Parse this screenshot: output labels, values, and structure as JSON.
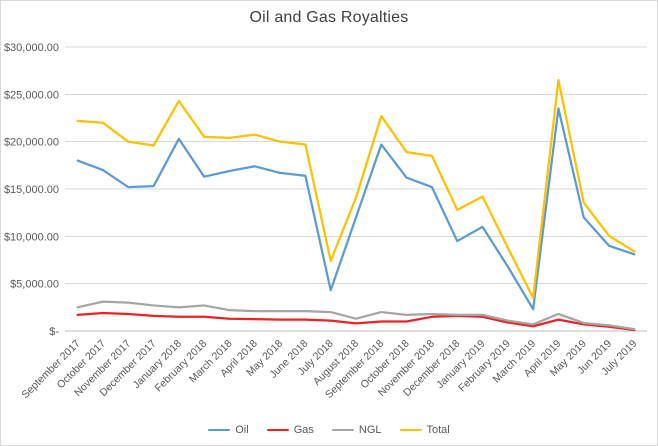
{
  "chart_data": {
    "type": "line",
    "title": "Oil and Gas Royalties",
    "x": [
      "September 2017",
      "October 2017",
      "November 2017",
      "December 2017",
      "January 2018",
      "February 2018",
      "March 2018",
      "April 2018",
      "May 2018",
      "June 2018",
      "July 2018",
      "August 2018",
      "September 2018",
      "October 2018",
      "November 2018",
      "December 2018",
      "January 2019",
      "February 2019",
      "March 2019",
      "April 2019",
      "May 2019",
      "Jun 2019",
      "July 2019"
    ],
    "series": [
      {
        "name": "Oil",
        "color": "#5b9bd5",
        "values": [
          18000,
          17000,
          15200,
          15300,
          20300,
          16300,
          16900,
          17400,
          16700,
          16400,
          4300,
          12000,
          19700,
          16200,
          15200,
          9500,
          11000,
          6800,
          2300,
          23500,
          12000,
          9000,
          8100
        ]
      },
      {
        "name": "Gas",
        "color": "#ed2224",
        "values": [
          1700,
          1900,
          1800,
          1600,
          1500,
          1500,
          1300,
          1250,
          1200,
          1200,
          1100,
          800,
          1000,
          1000,
          1500,
          1600,
          1500,
          900,
          500,
          1200,
          700,
          450,
          100
        ]
      },
      {
        "name": "NGL",
        "color": "#a5a5a5",
        "values": [
          2500,
          3100,
          3000,
          2700,
          2500,
          2700,
          2200,
          2100,
          2100,
          2100,
          2000,
          1300,
          2000,
          1700,
          1800,
          1700,
          1700,
          1100,
          700,
          1800,
          850,
          600,
          200
        ]
      },
      {
        "name": "Total",
        "color": "#ffc000",
        "values": [
          22200,
          22000,
          20000,
          19600,
          24300,
          20500,
          20400,
          20750,
          20000,
          19700,
          7400,
          14100,
          22700,
          18900,
          18500,
          12800,
          14200,
          8800,
          3500,
          26500,
          13550,
          10050,
          8400
        ]
      }
    ],
    "ylim": [
      0,
      30000
    ],
    "ytick_step": 5000,
    "ytick_labels": [
      "$-",
      "$5,000.00",
      "$10,000.00",
      "$15,000.00",
      "$20,000.00",
      "$25,000.00",
      "$30,000.00"
    ],
    "grid": true,
    "legend_position": "bottom",
    "colors": {
      "gridline": "#d9d9d9",
      "axis_line": "#bfbfbf",
      "tick_label": "#595959",
      "title": "#404040"
    }
  }
}
